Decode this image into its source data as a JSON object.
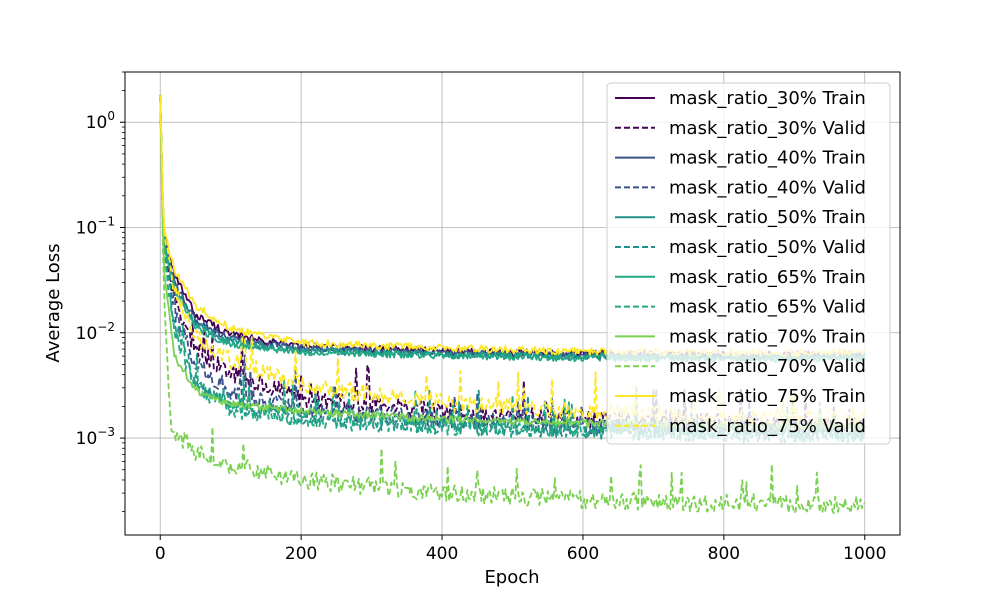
{
  "chart_data": {
    "type": "line",
    "title": "",
    "xlabel": "Epoch",
    "ylabel": "Average Loss",
    "xlim": [
      -50,
      1050
    ],
    "ylim": [
      0.00012,
      3.0
    ],
    "yscale": "log",
    "grid": true,
    "legend_position": "top-right",
    "x_ticks": [
      0,
      200,
      400,
      600,
      800,
      1000
    ],
    "x_tick_labels": [
      "0",
      "200",
      "400",
      "600",
      "800",
      "1000"
    ],
    "y_ticks": [
      1,
      0.1,
      0.01,
      0.001
    ],
    "y_tick_labels": [
      {
        "base": "10",
        "exp": "0"
      },
      {
        "base": "10",
        "exp": "−1"
      },
      {
        "base": "10",
        "exp": "−2"
      },
      {
        "base": "10",
        "exp": "−3"
      }
    ],
    "series": [
      {
        "name": "mask_ratio_30% Train",
        "color": "#440154",
        "style": "solid",
        "values": [
          [
            0,
            1.8
          ],
          [
            5,
            0.09
          ],
          [
            20,
            0.035
          ],
          [
            50,
            0.015
          ],
          [
            100,
            0.0095
          ],
          [
            200,
            0.0075
          ],
          [
            400,
            0.0067
          ],
          [
            600,
            0.0063
          ],
          [
            800,
            0.0062
          ],
          [
            1000,
            0.0062
          ]
        ]
      },
      {
        "name": "mask_ratio_30% Valid",
        "color": "#440154",
        "style": "dashed",
        "values": [
          [
            0,
            1.8
          ],
          [
            5,
            0.08
          ],
          [
            20,
            0.02
          ],
          [
            50,
            0.007
          ],
          [
            100,
            0.0042
          ],
          [
            200,
            0.0024
          ],
          [
            400,
            0.0018
          ],
          [
            600,
            0.0015
          ],
          [
            800,
            0.0014
          ],
          [
            1000,
            0.0013
          ]
        ]
      },
      {
        "name": "mask_ratio_40% Train",
        "color": "#3b528b",
        "style": "solid",
        "values": [
          [
            0,
            1.8
          ],
          [
            5,
            0.08
          ],
          [
            20,
            0.03
          ],
          [
            50,
            0.013
          ],
          [
            100,
            0.0088
          ],
          [
            200,
            0.0071
          ],
          [
            400,
            0.0065
          ],
          [
            600,
            0.0061
          ],
          [
            800,
            0.006
          ],
          [
            1000,
            0.006
          ]
        ]
      },
      {
        "name": "mask_ratio_40% Valid",
        "color": "#3b528b",
        "style": "dashed",
        "values": [
          [
            0,
            1.8
          ],
          [
            5,
            0.07
          ],
          [
            20,
            0.016
          ],
          [
            50,
            0.005
          ],
          [
            100,
            0.0028
          ],
          [
            200,
            0.0019
          ],
          [
            400,
            0.0015
          ],
          [
            600,
            0.0013
          ],
          [
            800,
            0.0012
          ],
          [
            1000,
            0.0012
          ]
        ]
      },
      {
        "name": "mask_ratio_50% Train",
        "color": "#21918c",
        "style": "solid",
        "values": [
          [
            0,
            1.8
          ],
          [
            5,
            0.075
          ],
          [
            20,
            0.028
          ],
          [
            50,
            0.012
          ],
          [
            100,
            0.0082
          ],
          [
            200,
            0.0068
          ],
          [
            400,
            0.0062
          ],
          [
            600,
            0.0059
          ],
          [
            800,
            0.0058
          ],
          [
            1000,
            0.0058
          ]
        ]
      },
      {
        "name": "mask_ratio_50% Valid",
        "color": "#21918c",
        "style": "dashed",
        "values": [
          [
            0,
            1.8
          ],
          [
            5,
            0.065
          ],
          [
            20,
            0.012
          ],
          [
            50,
            0.0035
          ],
          [
            100,
            0.0021
          ],
          [
            200,
            0.0016
          ],
          [
            400,
            0.0013
          ],
          [
            600,
            0.0012
          ],
          [
            800,
            0.0011
          ],
          [
            1000,
            0.0011
          ]
        ]
      },
      {
        "name": "mask_ratio_65% Train",
        "color": "#22a884",
        "style": "solid",
        "values": [
          [
            0,
            1.8
          ],
          [
            5,
            0.07
          ],
          [
            20,
            0.025
          ],
          [
            50,
            0.011
          ],
          [
            100,
            0.0078
          ],
          [
            200,
            0.0066
          ],
          [
            400,
            0.0061
          ],
          [
            600,
            0.0058
          ],
          [
            800,
            0.0057
          ],
          [
            1000,
            0.0057
          ]
        ]
      },
      {
        "name": "mask_ratio_65% Valid",
        "color": "#22a884",
        "style": "dashed",
        "values": [
          [
            0,
            1.8
          ],
          [
            5,
            0.06
          ],
          [
            20,
            0.01
          ],
          [
            50,
            0.003
          ],
          [
            100,
            0.0019
          ],
          [
            200,
            0.0015
          ],
          [
            400,
            0.0013
          ],
          [
            600,
            0.0012
          ],
          [
            800,
            0.0011
          ],
          [
            1000,
            0.0011
          ]
        ]
      },
      {
        "name": "mask_ratio_70% Train",
        "color": "#7ad151",
        "style": "solid",
        "values": [
          [
            0,
            1.8
          ],
          [
            5,
            0.04
          ],
          [
            20,
            0.006
          ],
          [
            50,
            0.0028
          ],
          [
            100,
            0.0021
          ],
          [
            200,
            0.0018
          ],
          [
            400,
            0.0015
          ],
          [
            600,
            0.0014
          ],
          [
            800,
            0.0013
          ],
          [
            1000,
            0.0013
          ]
        ]
      },
      {
        "name": "mask_ratio_70% Valid",
        "color": "#7ad151",
        "style": "dashed",
        "values": [
          [
            0,
            1.8
          ],
          [
            5,
            0.025
          ],
          [
            15,
            0.0012
          ],
          [
            50,
            0.00075
          ],
          [
            100,
            0.00055
          ],
          [
            200,
            0.0004
          ],
          [
            400,
            0.0003
          ],
          [
            600,
            0.00026
          ],
          [
            800,
            0.00024
          ],
          [
            1000,
            0.00023
          ]
        ]
      },
      {
        "name": "mask_ratio_75% Train",
        "color": "#fde725",
        "style": "solid",
        "values": [
          [
            0,
            1.8
          ],
          [
            5,
            0.1
          ],
          [
            20,
            0.04
          ],
          [
            50,
            0.018
          ],
          [
            100,
            0.011
          ],
          [
            200,
            0.008
          ],
          [
            400,
            0.0072
          ],
          [
            600,
            0.0067
          ],
          [
            800,
            0.0065
          ],
          [
            1000,
            0.0065
          ]
        ]
      },
      {
        "name": "mask_ratio_75% Valid",
        "color": "#fde725",
        "style": "dashed",
        "values": [
          [
            0,
            1.8
          ],
          [
            5,
            0.09
          ],
          [
            20,
            0.025
          ],
          [
            50,
            0.009
          ],
          [
            100,
            0.0055
          ],
          [
            200,
            0.0032
          ],
          [
            400,
            0.0022
          ],
          [
            600,
            0.0018
          ],
          [
            800,
            0.0016
          ],
          [
            1000,
            0.0016
          ]
        ]
      }
    ]
  }
}
